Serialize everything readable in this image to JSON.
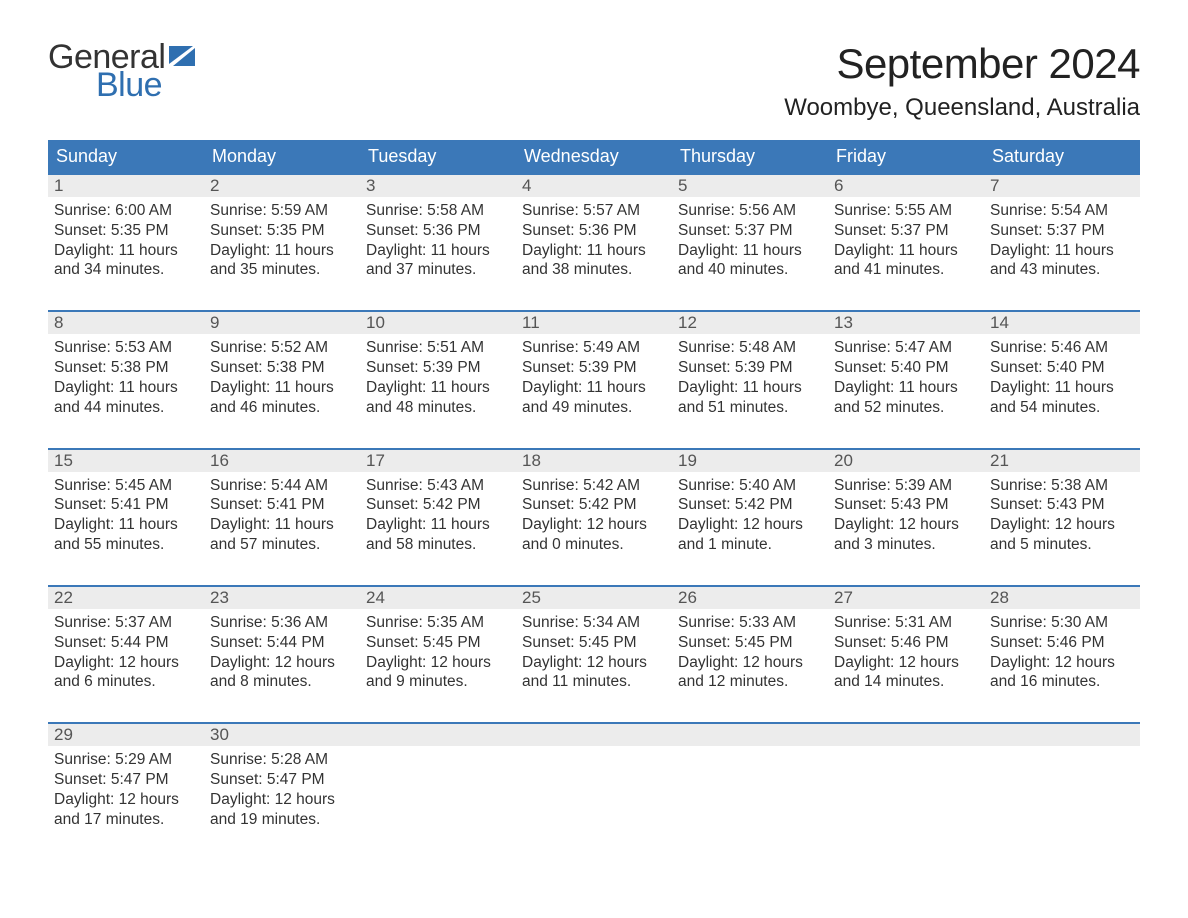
{
  "brand": {
    "line1": "General",
    "line2": "Blue",
    "flag_color": "#2f6fb0"
  },
  "title": "September 2024",
  "location": "Woombye, Queensland, Australia",
  "colors": {
    "header_bg": "#3b78b8",
    "header_text": "#ffffff",
    "row_border": "#3b78b8",
    "daynum_bg": "#ececec",
    "daynum_text": "#555555",
    "body_text": "#333333",
    "brand_blue": "#2f6fb0",
    "background": "#ffffff"
  },
  "typography": {
    "title_fontsize_pt": 32,
    "location_fontsize_pt": 18,
    "header_fontsize_pt": 14,
    "daynum_fontsize_pt": 13,
    "body_fontsize_pt": 12
  },
  "weekdays": [
    "Sunday",
    "Monday",
    "Tuesday",
    "Wednesday",
    "Thursday",
    "Friday",
    "Saturday"
  ],
  "labels": {
    "sunrise": "Sunrise:",
    "sunset": "Sunset:",
    "daylight": "Daylight:"
  },
  "weeks": [
    [
      {
        "n": "1",
        "sunrise": "6:00 AM",
        "sunset": "5:35 PM",
        "daylight": "11 hours and 34 minutes."
      },
      {
        "n": "2",
        "sunrise": "5:59 AM",
        "sunset": "5:35 PM",
        "daylight": "11 hours and 35 minutes."
      },
      {
        "n": "3",
        "sunrise": "5:58 AM",
        "sunset": "5:36 PM",
        "daylight": "11 hours and 37 minutes."
      },
      {
        "n": "4",
        "sunrise": "5:57 AM",
        "sunset": "5:36 PM",
        "daylight": "11 hours and 38 minutes."
      },
      {
        "n": "5",
        "sunrise": "5:56 AM",
        "sunset": "5:37 PM",
        "daylight": "11 hours and 40 minutes."
      },
      {
        "n": "6",
        "sunrise": "5:55 AM",
        "sunset": "5:37 PM",
        "daylight": "11 hours and 41 minutes."
      },
      {
        "n": "7",
        "sunrise": "5:54 AM",
        "sunset": "5:37 PM",
        "daylight": "11 hours and 43 minutes."
      }
    ],
    [
      {
        "n": "8",
        "sunrise": "5:53 AM",
        "sunset": "5:38 PM",
        "daylight": "11 hours and 44 minutes."
      },
      {
        "n": "9",
        "sunrise": "5:52 AM",
        "sunset": "5:38 PM",
        "daylight": "11 hours and 46 minutes."
      },
      {
        "n": "10",
        "sunrise": "5:51 AM",
        "sunset": "5:39 PM",
        "daylight": "11 hours and 48 minutes."
      },
      {
        "n": "11",
        "sunrise": "5:49 AM",
        "sunset": "5:39 PM",
        "daylight": "11 hours and 49 minutes."
      },
      {
        "n": "12",
        "sunrise": "5:48 AM",
        "sunset": "5:39 PM",
        "daylight": "11 hours and 51 minutes."
      },
      {
        "n": "13",
        "sunrise": "5:47 AM",
        "sunset": "5:40 PM",
        "daylight": "11 hours and 52 minutes."
      },
      {
        "n": "14",
        "sunrise": "5:46 AM",
        "sunset": "5:40 PM",
        "daylight": "11 hours and 54 minutes."
      }
    ],
    [
      {
        "n": "15",
        "sunrise": "5:45 AM",
        "sunset": "5:41 PM",
        "daylight": "11 hours and 55 minutes."
      },
      {
        "n": "16",
        "sunrise": "5:44 AM",
        "sunset": "5:41 PM",
        "daylight": "11 hours and 57 minutes."
      },
      {
        "n": "17",
        "sunrise": "5:43 AM",
        "sunset": "5:42 PM",
        "daylight": "11 hours and 58 minutes."
      },
      {
        "n": "18",
        "sunrise": "5:42 AM",
        "sunset": "5:42 PM",
        "daylight": "12 hours and 0 minutes."
      },
      {
        "n": "19",
        "sunrise": "5:40 AM",
        "sunset": "5:42 PM",
        "daylight": "12 hours and 1 minute."
      },
      {
        "n": "20",
        "sunrise": "5:39 AM",
        "sunset": "5:43 PM",
        "daylight": "12 hours and 3 minutes."
      },
      {
        "n": "21",
        "sunrise": "5:38 AM",
        "sunset": "5:43 PM",
        "daylight": "12 hours and 5 minutes."
      }
    ],
    [
      {
        "n": "22",
        "sunrise": "5:37 AM",
        "sunset": "5:44 PM",
        "daylight": "12 hours and 6 minutes."
      },
      {
        "n": "23",
        "sunrise": "5:36 AM",
        "sunset": "5:44 PM",
        "daylight": "12 hours and 8 minutes."
      },
      {
        "n": "24",
        "sunrise": "5:35 AM",
        "sunset": "5:45 PM",
        "daylight": "12 hours and 9 minutes."
      },
      {
        "n": "25",
        "sunrise": "5:34 AM",
        "sunset": "5:45 PM",
        "daylight": "12 hours and 11 minutes."
      },
      {
        "n": "26",
        "sunrise": "5:33 AM",
        "sunset": "5:45 PM",
        "daylight": "12 hours and 12 minutes."
      },
      {
        "n": "27",
        "sunrise": "5:31 AM",
        "sunset": "5:46 PM",
        "daylight": "12 hours and 14 minutes."
      },
      {
        "n": "28",
        "sunrise": "5:30 AM",
        "sunset": "5:46 PM",
        "daylight": "12 hours and 16 minutes."
      }
    ],
    [
      {
        "n": "29",
        "sunrise": "5:29 AM",
        "sunset": "5:47 PM",
        "daylight": "12 hours and 17 minutes."
      },
      {
        "n": "30",
        "sunrise": "5:28 AM",
        "sunset": "5:47 PM",
        "daylight": "12 hours and 19 minutes."
      },
      null,
      null,
      null,
      null,
      null
    ]
  ]
}
